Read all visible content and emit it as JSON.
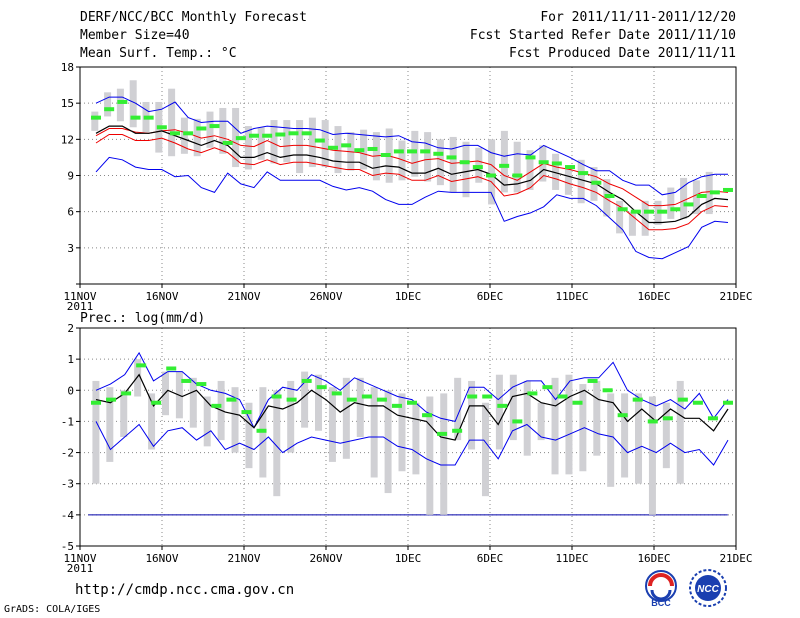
{
  "header": {
    "title": "DERF/NCC/BCC Monthly Forecast",
    "member_size": "Member Size=40",
    "variable": "Mean Surf. Temp.: °C",
    "period": "For 2011/11/11-2011/12/20",
    "started": "Fcst Started Refer Date 2011/11/10",
    "produced": "Fcst Produced Date 2011/11/11"
  },
  "footer": {
    "url": "http://cmdp.ncc.cma.gov.cn",
    "grads": "GrADS: COLA/IGES",
    "logo1_text": "BCC",
    "logo2_text": "NCC"
  },
  "colors": {
    "max_min": "#0000ee",
    "spread": "#ee0000",
    "mean": "#000000",
    "box": "#d0d0d4",
    "obs": "#33ee33",
    "ref": "#0000aa",
    "grid": "#888888"
  },
  "chart_data": [
    {
      "type": "line",
      "title": "",
      "ylabel": "Mean Surf. Temp.: °C",
      "ylim": [
        0,
        18
      ],
      "yticks": [
        0,
        3,
        6,
        9,
        12,
        15,
        18
      ],
      "ytick_labels": [
        "",
        "3",
        "6",
        "9",
        "12",
        "15",
        "18"
      ],
      "xlim": [
        0,
        40
      ],
      "xticks": [
        0,
        5,
        10,
        15,
        20,
        25,
        30,
        35,
        40
      ],
      "xtick_labels": [
        "11NOV",
        "16NOV",
        "21NOV",
        "26NOV",
        "1DEC",
        "6DEC",
        "11DEC",
        "16DEC",
        "21DEC"
      ],
      "x_year_label": "2011",
      "series": [
        {
          "name": "max",
          "values": [
            15.0,
            15.5,
            15.5,
            15.0,
            14.3,
            14.5,
            15.1,
            13.8,
            13.4,
            13.5,
            13.5,
            12.5,
            12.9,
            13.1,
            13.0,
            12.9,
            12.9,
            12.8,
            12.4,
            12.5,
            12.4,
            12.3,
            12.2,
            12.3,
            11.8,
            11.7,
            11.3,
            11.2,
            11.5,
            11.5,
            10.9,
            10.6,
            10.8,
            10.7,
            11.5,
            11.0,
            10.5,
            9.9,
            9.4,
            9.4,
            8.6,
            8.2,
            8.2,
            7.4,
            7.6,
            8.4,
            8.9,
            9.1,
            9.1
          ]
        },
        {
          "name": "spread_upper",
          "values": [
            12.3,
            12.9,
            12.9,
            12.6,
            12.5,
            12.7,
            12.8,
            12.5,
            12.1,
            12.3,
            12.0,
            11.5,
            11.4,
            11.9,
            11.4,
            11.5,
            11.5,
            11.3,
            11.1,
            11.0,
            10.9,
            10.6,
            10.7,
            10.4,
            10.0,
            10.3,
            10.4,
            10.0,
            10.1,
            10.2,
            9.9,
            9.0,
            8.6,
            9.3,
            10.0,
            9.7,
            9.5,
            9.2,
            8.9,
            8.3,
            7.9,
            7.2,
            6.5,
            6.5,
            6.6,
            7.1,
            7.6,
            7.7,
            7.6
          ]
        },
        {
          "name": "mean",
          "values": [
            12.5,
            13.1,
            13.1,
            12.5,
            12.5,
            12.7,
            12.3,
            11.9,
            11.5,
            11.9,
            11.5,
            10.5,
            10.5,
            10.9,
            10.5,
            10.7,
            10.7,
            10.5,
            10.2,
            10.1,
            10.1,
            9.6,
            9.8,
            9.7,
            9.2,
            9.2,
            9.6,
            9.1,
            9.3,
            9.5,
            9.1,
            8.2,
            8.3,
            8.6,
            9.5,
            9.2,
            8.9,
            8.6,
            8.3,
            7.6,
            7.0,
            6.0,
            5.1,
            5.1,
            5.2,
            5.6,
            6.6,
            7.1,
            7.0
          ]
        },
        {
          "name": "spread_lower",
          "values": [
            11.7,
            12.4,
            12.4,
            11.9,
            11.9,
            12.1,
            11.7,
            11.2,
            10.9,
            11.3,
            10.9,
            10.0,
            9.9,
            10.3,
            9.9,
            10.1,
            10.1,
            9.9,
            9.7,
            9.5,
            9.5,
            9.0,
            9.2,
            9.1,
            8.6,
            8.6,
            9.0,
            8.5,
            8.7,
            8.9,
            8.5,
            7.3,
            7.5,
            8.0,
            9.0,
            8.7,
            8.3,
            8.0,
            7.6,
            6.9,
            6.3,
            5.4,
            4.5,
            4.5,
            4.6,
            5.0,
            6.0,
            6.5,
            6.4
          ]
        },
        {
          "name": "min",
          "values": [
            9.3,
            10.5,
            10.3,
            9.7,
            9.5,
            9.5,
            8.9,
            9.0,
            8.0,
            7.6,
            9.2,
            8.3,
            8.0,
            9.3,
            8.6,
            8.6,
            8.6,
            8.6,
            8.1,
            7.8,
            8.0,
            7.7,
            7.0,
            6.6,
            6.6,
            7.2,
            7.7,
            7.6,
            7.6,
            7.6,
            7.6,
            5.2,
            5.6,
            5.9,
            6.4,
            7.4,
            7.1,
            7.1,
            6.5,
            5.5,
            4.5,
            2.7,
            2.2,
            2.1,
            2.6,
            3.1,
            4.7,
            5.2,
            5.1
          ]
        },
        {
          "name": "obs",
          "values": [
            13.8,
            14.5,
            15.1,
            13.8,
            13.8,
            13.0,
            12.5,
            12.5,
            12.9,
            13.1,
            11.7,
            12.1,
            12.3,
            12.3,
            12.4,
            12.5,
            12.5,
            11.9,
            11.3,
            11.5,
            11.1,
            11.2,
            10.7,
            11.0,
            11.0,
            11.0,
            10.8,
            10.5,
            10.1,
            9.7,
            9.0,
            9.8,
            9.0,
            10.5,
            10.1,
            10.0,
            9.7,
            9.2,
            8.4,
            7.3,
            6.2,
            6.0,
            6.0,
            6.0,
            6.2,
            6.6,
            7.3,
            7.6,
            7.8
          ]
        },
        {
          "name": "box_top",
          "values": [
            14.3,
            15.9,
            16.2,
            16.9,
            15.1,
            15.1,
            16.2,
            13.8,
            13.7,
            14.3,
            14.6,
            14.6,
            13.1,
            13.0,
            13.6,
            13.6,
            13.6,
            13.8,
            13.6,
            13.1,
            12.6,
            12.8,
            12.6,
            12.9,
            11.9,
            12.7,
            12.6,
            12.0,
            12.2,
            11.8,
            11.3,
            12.0,
            12.7,
            11.8,
            11.1,
            11.5,
            10.8,
            9.6,
            10.3,
            9.7,
            8.7,
            6.9,
            6.0,
            6.9,
            6.9,
            8.0,
            8.8,
            8.6,
            9.3
          ]
        },
        {
          "name": "box_bottom",
          "values": [
            12.7,
            13.9,
            13.5,
            13.0,
            12.6,
            10.9,
            10.6,
            10.8,
            10.6,
            11.3,
            10.8,
            9.7,
            9.5,
            10.3,
            10.0,
            10.1,
            9.2,
            9.7,
            9.7,
            9.2,
            9.4,
            9.5,
            8.6,
            8.4,
            8.6,
            8.9,
            8.5,
            8.2,
            7.6,
            7.2,
            8.4,
            6.6,
            7.6,
            7.6,
            7.8,
            8.5,
            7.8,
            7.4,
            6.7,
            6.9,
            5.6,
            4.2,
            4.0,
            4.0,
            4.9,
            5.4,
            5.4,
            5.8,
            5.8
          ]
        }
      ]
    },
    {
      "type": "line",
      "title": "Prec.: log(mm/d)",
      "ylabel": "Prec.: log(mm/d)",
      "ylim": [
        -5,
        2
      ],
      "yticks": [
        -5,
        -4,
        -3,
        -2,
        -1,
        0,
        1,
        2
      ],
      "ytick_labels": [
        "-5",
        "-4",
        "-3",
        "-2",
        "-1",
        "0",
        "1",
        "2"
      ],
      "xlim": [
        0,
        40
      ],
      "xticks": [
        0,
        5,
        10,
        15,
        20,
        25,
        30,
        35,
        40
      ],
      "xtick_labels": [
        "11NOV",
        "16NOV",
        "21NOV",
        "26NOV",
        "1DEC",
        "6DEC",
        "11DEC",
        "16DEC",
        "21DEC"
      ],
      "x_year_label": "2011",
      "reference_line": -4,
      "series": [
        {
          "name": "max",
          "values": [
            0.0,
            0.2,
            0.5,
            1.2,
            0.3,
            0.6,
            0.6,
            0.2,
            0.0,
            -0.1,
            -0.3,
            -1.2,
            -0.3,
            0.1,
            0.0,
            0.5,
            0.3,
            0.0,
            0.4,
            0.2,
            0.0,
            -0.2,
            -0.3,
            -0.7,
            -0.9,
            -1.0,
            0.1,
            0.1,
            -0.3,
            0.1,
            0.3,
            0.3,
            -0.3,
            0.3,
            0.4,
            0.4,
            0.9,
            0.0,
            -0.3,
            -0.5,
            -0.3,
            -0.6,
            -0.1,
            -0.9,
            -0.3
          ]
        },
        {
          "name": "mean",
          "values": [
            -0.3,
            -0.4,
            -0.1,
            0.5,
            -0.5,
            0.0,
            -0.2,
            0.0,
            -0.5,
            -0.7,
            -0.8,
            -1.2,
            -0.5,
            -0.6,
            -0.4,
            0.0,
            -0.3,
            -0.7,
            -0.4,
            -0.5,
            -0.5,
            -0.8,
            -0.9,
            -1.0,
            -1.5,
            -1.6,
            -0.5,
            -0.5,
            -1.1,
            -0.2,
            -0.1,
            -0.4,
            -0.5,
            -0.2,
            0.0,
            -0.3,
            -0.4,
            -1.0,
            -0.6,
            -1.0,
            -0.6,
            -0.9,
            -0.9,
            -1.3,
            -0.6
          ]
        },
        {
          "name": "min",
          "values": [
            -1.0,
            -1.9,
            -1.5,
            -1.1,
            -1.8,
            -1.3,
            -1.2,
            -1.6,
            -1.3,
            -1.9,
            -1.7,
            -1.9,
            -1.5,
            -2.0,
            -1.7,
            -1.5,
            -1.6,
            -1.7,
            -1.6,
            -1.5,
            -1.5,
            -1.8,
            -1.9,
            -2.2,
            -2.4,
            -2.4,
            -1.6,
            -1.6,
            -2.2,
            -1.3,
            -1.1,
            -1.5,
            -1.6,
            -1.4,
            -1.2,
            -1.4,
            -1.5,
            -2.0,
            -1.8,
            -2.0,
            -1.7,
            -2.0,
            -1.9,
            -2.4,
            -1.6
          ]
        },
        {
          "name": "obs",
          "values": [
            -0.4,
            -0.3,
            -0.1,
            0.8,
            -0.4,
            0.7,
            0.3,
            0.2,
            -0.5,
            -0.3,
            -0.7,
            -1.3,
            -0.2,
            -0.3,
            0.3,
            0.1,
            -0.1,
            -0.3,
            -0.2,
            -0.3,
            -0.5,
            -0.4,
            -0.8,
            -1.4,
            -1.3,
            -0.2,
            -0.2,
            -0.5,
            -1.0,
            -0.1,
            0.1,
            -0.2,
            -0.4,
            0.3,
            0.0,
            -0.8,
            -0.3,
            -1.0,
            -0.9,
            -0.3,
            -0.4,
            -0.9,
            -0.4
          ]
        },
        {
          "name": "box_top",
          "values": [
            0.3,
            0.1,
            0.0,
            1.0,
            -0.1,
            0.6,
            0.6,
            0.4,
            -0.2,
            0.3,
            0.1,
            -0.4,
            0.1,
            0.0,
            0.3,
            0.6,
            0.5,
            0.1,
            0.4,
            0.4,
            0.1,
            0.0,
            -0.1,
            -0.4,
            -0.2,
            -0.1,
            0.4,
            0.3,
            -0.4,
            0.5,
            0.5,
            0.3,
            -0.4,
            0.4,
            0.5,
            0.2,
            0.3,
            -0.1,
            -0.1,
            -0.1,
            -0.2,
            -0.4,
            0.3,
            -0.2,
            -0.1
          ]
        },
        {
          "name": "box_bottom",
          "values": [
            -3.0,
            -2.3,
            -1.5,
            -0.2,
            -1.9,
            -0.8,
            -0.9,
            -1.2,
            -1.8,
            -1.6,
            -2.0,
            -2.5,
            -2.8,
            -3.4,
            -2.0,
            -1.2,
            -1.3,
            -2.3,
            -2.2,
            -1.5,
            -2.8,
            -3.3,
            -2.6,
            -2.7,
            -4.0,
            -4.0,
            -1.6,
            -1.9,
            -3.4,
            -1.9,
            -1.6,
            -2.1,
            -1.6,
            -2.7,
            -2.7,
            -2.6,
            -2.1,
            -3.1,
            -2.8,
            -3.0,
            -4.0,
            -2.5,
            -3.0
          ]
        }
      ]
    }
  ]
}
